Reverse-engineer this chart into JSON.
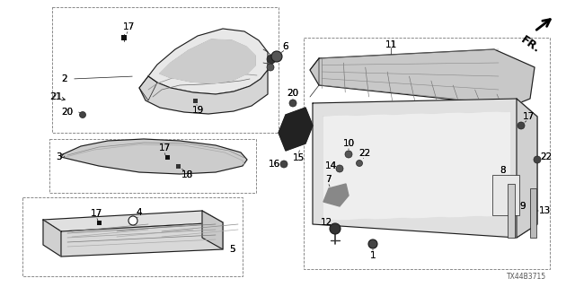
{
  "background_color": "#ffffff",
  "line_color": "#1a1a1a",
  "diagram_id": "TX44B3715",
  "label_fontsize": 7.5,
  "small_fontsize": 6.0
}
